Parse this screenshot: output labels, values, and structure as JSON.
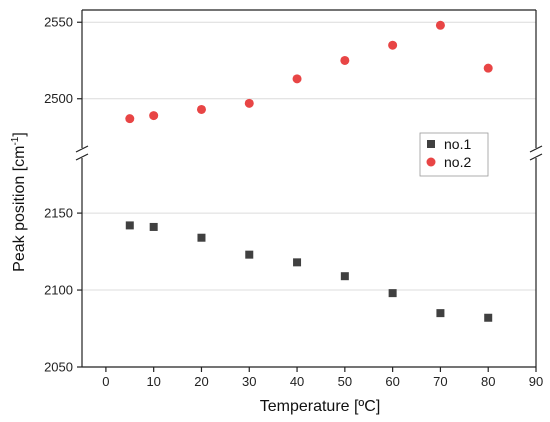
{
  "chart_data": {
    "type": "scatter",
    "xlabel": "Temperature [ºC]",
    "ylabel": "Peak position [cm",
    "ylabel_sup": "-1",
    "ylabel_close": "]",
    "x_ticks": [
      0,
      10,
      20,
      30,
      40,
      50,
      60,
      70,
      80,
      90
    ],
    "xlim": [
      -5,
      90
    ],
    "axis_break": true,
    "upper_panel": {
      "ylim": [
        2475,
        2558
      ],
      "y_ticks": [
        2500,
        2550
      ]
    },
    "lower_panel": {
      "ylim": [
        2050,
        2178
      ],
      "y_ticks": [
        2050,
        2100,
        2150
      ]
    },
    "grid": true,
    "legend_position": "upper-right of lower panel",
    "series": [
      {
        "name": "no.1",
        "marker": "square",
        "color": "#404040",
        "points": [
          {
            "x": 5,
            "y": 2142
          },
          {
            "x": 10,
            "y": 2141
          },
          {
            "x": 20,
            "y": 2134
          },
          {
            "x": 30,
            "y": 2123
          },
          {
            "x": 40,
            "y": 2118
          },
          {
            "x": 50,
            "y": 2109
          },
          {
            "x": 60,
            "y": 2098
          },
          {
            "x": 70,
            "y": 2085
          },
          {
            "x": 80,
            "y": 2082
          }
        ]
      },
      {
        "name": "no.2",
        "marker": "circle",
        "color": "#e84545",
        "points": [
          {
            "x": 5,
            "y": 2487
          },
          {
            "x": 10,
            "y": 2489
          },
          {
            "x": 20,
            "y": 2493
          },
          {
            "x": 30,
            "y": 2497
          },
          {
            "x": 40,
            "y": 2513
          },
          {
            "x": 50,
            "y": 2525
          },
          {
            "x": 60,
            "y": 2535
          },
          {
            "x": 70,
            "y": 2548
          },
          {
            "x": 80,
            "y": 2520
          }
        ]
      }
    ]
  }
}
